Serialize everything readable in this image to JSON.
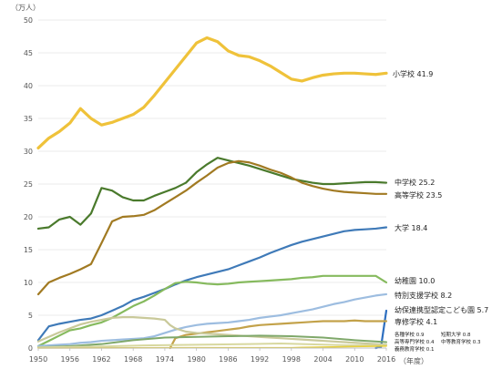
{
  "chart_data": {
    "type": "line",
    "title": "",
    "y_unit_label": "（万人）",
    "x_unit_label": "（年度）",
    "xlim": [
      1950,
      2016
    ],
    "ylim": [
      0,
      50
    ],
    "x_ticks": [
      1950,
      1956,
      1962,
      1968,
      1974,
      1980,
      1986,
      1992,
      1998,
      2004,
      2010,
      2016
    ],
    "y_ticks": [
      0,
      5,
      10,
      15,
      20,
      25,
      30,
      35,
      40,
      45,
      50
    ],
    "grid": "horizontal",
    "legend": "line-end labels on right",
    "series": [
      {
        "name": "小学校",
        "value_label": "41.9",
        "color": "#efc23a",
        "width": 3.2,
        "points": [
          [
            1950,
            30.5
          ],
          [
            1952,
            32
          ],
          [
            1954,
            33
          ],
          [
            1956,
            34.3
          ],
          [
            1958,
            36.5
          ],
          [
            1960,
            35
          ],
          [
            1962,
            34
          ],
          [
            1964,
            34.4
          ],
          [
            1966,
            35
          ],
          [
            1968,
            35.6
          ],
          [
            1970,
            36.7
          ],
          [
            1972,
            38.5
          ],
          [
            1974,
            40.5
          ],
          [
            1976,
            42.5
          ],
          [
            1978,
            44.5
          ],
          [
            1980,
            46.5
          ],
          [
            1982,
            47.3
          ],
          [
            1984,
            46.7
          ],
          [
            1986,
            45.3
          ],
          [
            1988,
            44.6
          ],
          [
            1990,
            44.4
          ],
          [
            1992,
            43.8
          ],
          [
            1994,
            43
          ],
          [
            1996,
            42
          ],
          [
            1998,
            41
          ],
          [
            2000,
            40.7
          ],
          [
            2002,
            41.2
          ],
          [
            2004,
            41.6
          ],
          [
            2006,
            41.8
          ],
          [
            2008,
            41.9
          ],
          [
            2010,
            41.9
          ],
          [
            2012,
            41.8
          ],
          [
            2014,
            41.7
          ],
          [
            2016,
            41.9
          ]
        ]
      },
      {
        "name": "中学校",
        "value_label": "25.2",
        "color": "#4a7a2c",
        "width": 2.2,
        "points": [
          [
            1950,
            18.2
          ],
          [
            1952,
            18.4
          ],
          [
            1954,
            19.6
          ],
          [
            1956,
            20
          ],
          [
            1958,
            18.8
          ],
          [
            1960,
            20.5
          ],
          [
            1962,
            24.4
          ],
          [
            1964,
            24
          ],
          [
            1966,
            23
          ],
          [
            1968,
            22.5
          ],
          [
            1970,
            22.5
          ],
          [
            1972,
            23.2
          ],
          [
            1974,
            23.8
          ],
          [
            1976,
            24.4
          ],
          [
            1978,
            25.2
          ],
          [
            1980,
            26.8
          ],
          [
            1982,
            28
          ],
          [
            1984,
            29
          ],
          [
            1986,
            28.6
          ],
          [
            1988,
            28.2
          ],
          [
            1990,
            27.8
          ],
          [
            1992,
            27.3
          ],
          [
            1994,
            26.8
          ],
          [
            1996,
            26.3
          ],
          [
            1998,
            25.8
          ],
          [
            2000,
            25.5
          ],
          [
            2002,
            25.2
          ],
          [
            2004,
            25
          ],
          [
            2006,
            25
          ],
          [
            2008,
            25.1
          ],
          [
            2010,
            25.2
          ],
          [
            2012,
            25.3
          ],
          [
            2014,
            25.3
          ],
          [
            2016,
            25.2
          ]
        ]
      },
      {
        "name": "高等学校",
        "value_label": "23.5",
        "color": "#a17a22",
        "width": 2.2,
        "points": [
          [
            1950,
            8.2
          ],
          [
            1952,
            10
          ],
          [
            1954,
            10.7
          ],
          [
            1956,
            11.3
          ],
          [
            1958,
            12
          ],
          [
            1960,
            12.8
          ],
          [
            1962,
            16
          ],
          [
            1964,
            19.3
          ],
          [
            1966,
            20
          ],
          [
            1968,
            20.1
          ],
          [
            1970,
            20.3
          ],
          [
            1972,
            21
          ],
          [
            1974,
            22
          ],
          [
            1976,
            23
          ],
          [
            1978,
            24
          ],
          [
            1980,
            25.2
          ],
          [
            1982,
            26.3
          ],
          [
            1984,
            27.5
          ],
          [
            1986,
            28.2
          ],
          [
            1988,
            28.5
          ],
          [
            1990,
            28.3
          ],
          [
            1992,
            27.8
          ],
          [
            1994,
            27.2
          ],
          [
            1996,
            26.7
          ],
          [
            1998,
            26
          ],
          [
            2000,
            25.2
          ],
          [
            2002,
            24.7
          ],
          [
            2004,
            24.3
          ],
          [
            2006,
            24
          ],
          [
            2008,
            23.8
          ],
          [
            2010,
            23.7
          ],
          [
            2012,
            23.6
          ],
          [
            2014,
            23.5
          ],
          [
            2016,
            23.5
          ]
        ]
      },
      {
        "name": "大学",
        "value_label": "18.4",
        "color": "#3f7ab8",
        "width": 2.2,
        "points": [
          [
            1950,
            1.2
          ],
          [
            1952,
            3.3
          ],
          [
            1954,
            3.7
          ],
          [
            1956,
            4
          ],
          [
            1958,
            4.3
          ],
          [
            1960,
            4.5
          ],
          [
            1962,
            5
          ],
          [
            1964,
            5.7
          ],
          [
            1966,
            6.4
          ],
          [
            1968,
            7.3
          ],
          [
            1970,
            7.8
          ],
          [
            1972,
            8.4
          ],
          [
            1974,
            9
          ],
          [
            1976,
            9.7
          ],
          [
            1978,
            10.3
          ],
          [
            1980,
            10.8
          ],
          [
            1982,
            11.2
          ],
          [
            1984,
            11.6
          ],
          [
            1986,
            12
          ],
          [
            1988,
            12.6
          ],
          [
            1990,
            13.2
          ],
          [
            1992,
            13.8
          ],
          [
            1994,
            14.5
          ],
          [
            1996,
            15.1
          ],
          [
            1998,
            15.7
          ],
          [
            2000,
            16.2
          ],
          [
            2002,
            16.6
          ],
          [
            2004,
            17
          ],
          [
            2006,
            17.4
          ],
          [
            2008,
            17.8
          ],
          [
            2010,
            18
          ],
          [
            2012,
            18.1
          ],
          [
            2014,
            18.2
          ],
          [
            2016,
            18.4
          ]
        ]
      },
      {
        "name": "幼稚園",
        "value_label": "10.0",
        "color": "#86ba5e",
        "width": 2.2,
        "points": [
          [
            1950,
            0.3
          ],
          [
            1952,
            1.1
          ],
          [
            1954,
            1.9
          ],
          [
            1956,
            2.7
          ],
          [
            1958,
            3
          ],
          [
            1960,
            3.5
          ],
          [
            1962,
            3.9
          ],
          [
            1964,
            4.6
          ],
          [
            1966,
            5.5
          ],
          [
            1968,
            6.4
          ],
          [
            1970,
            7.1
          ],
          [
            1972,
            8
          ],
          [
            1974,
            9
          ],
          [
            1976,
            9.9
          ],
          [
            1978,
            10.1
          ],
          [
            1980,
            10
          ],
          [
            1982,
            9.8
          ],
          [
            1984,
            9.7
          ],
          [
            1986,
            9.8
          ],
          [
            1988,
            10
          ],
          [
            1990,
            10.1
          ],
          [
            1992,
            10.2
          ],
          [
            1994,
            10.3
          ],
          [
            1996,
            10.4
          ],
          [
            1998,
            10.5
          ],
          [
            2000,
            10.7
          ],
          [
            2002,
            10.8
          ],
          [
            2004,
            11
          ],
          [
            2006,
            11
          ],
          [
            2008,
            11
          ],
          [
            2010,
            11
          ],
          [
            2012,
            11
          ],
          [
            2014,
            11
          ],
          [
            2016,
            10
          ]
        ]
      },
      {
        "name": "特別支援学校",
        "value_label": "8.2",
        "color": "#9dbde0",
        "width": 2.2,
        "points": [
          [
            1950,
            0.3
          ],
          [
            1952,
            0.4
          ],
          [
            1954,
            0.5
          ],
          [
            1956,
            0.6
          ],
          [
            1958,
            0.8
          ],
          [
            1960,
            0.9
          ],
          [
            1962,
            1.1
          ],
          [
            1964,
            1.2
          ],
          [
            1966,
            1.3
          ],
          [
            1968,
            1.4
          ],
          [
            1970,
            1.5
          ],
          [
            1972,
            1.8
          ],
          [
            1974,
            2.3
          ],
          [
            1976,
            2.8
          ],
          [
            1978,
            3.2
          ],
          [
            1980,
            3.5
          ],
          [
            1982,
            3.7
          ],
          [
            1984,
            3.8
          ],
          [
            1986,
            3.9
          ],
          [
            1988,
            4.1
          ],
          [
            1990,
            4.3
          ],
          [
            1992,
            4.6
          ],
          [
            1994,
            4.8
          ],
          [
            1996,
            5
          ],
          [
            1998,
            5.3
          ],
          [
            2000,
            5.6
          ],
          [
            2002,
            5.9
          ],
          [
            2004,
            6.3
          ],
          [
            2006,
            6.7
          ],
          [
            2008,
            7
          ],
          [
            2010,
            7.4
          ],
          [
            2012,
            7.7
          ],
          [
            2014,
            8
          ],
          [
            2016,
            8.2
          ]
        ]
      },
      {
        "name": "幼保連携型認定こども園",
        "value_label": "5.7",
        "color": "#2e6fc0",
        "width": 2.2,
        "points": [
          [
            2014,
            0
          ],
          [
            2015,
            0.2
          ],
          [
            2016,
            5.7
          ]
        ]
      },
      {
        "name": "専修学校",
        "value_label": "4.1",
        "color": "#c3a24a",
        "width": 2.2,
        "points": [
          [
            1975,
            0
          ],
          [
            1976,
            1.5
          ],
          [
            1978,
            2
          ],
          [
            1980,
            2.2
          ],
          [
            1982,
            2.4
          ],
          [
            1984,
            2.6
          ],
          [
            1986,
            2.8
          ],
          [
            1988,
            3
          ],
          [
            1990,
            3.3
          ],
          [
            1992,
            3.5
          ],
          [
            1994,
            3.6
          ],
          [
            1996,
            3.7
          ],
          [
            1998,
            3.8
          ],
          [
            2000,
            3.9
          ],
          [
            2002,
            4
          ],
          [
            2004,
            4.1
          ],
          [
            2006,
            4.1
          ],
          [
            2008,
            4.1
          ],
          [
            2010,
            4.2
          ],
          [
            2012,
            4.1
          ],
          [
            2014,
            4.1
          ],
          [
            2016,
            4.1
          ]
        ]
      },
      {
        "name": "",
        "value_label": "",
        "color": "#c9c99a",
        "width": 2.2,
        "points": [
          [
            1950,
            1
          ],
          [
            1952,
            1.7
          ],
          [
            1954,
            2.4
          ],
          [
            1956,
            3
          ],
          [
            1958,
            3.6
          ],
          [
            1960,
            4
          ],
          [
            1962,
            4.3
          ],
          [
            1964,
            4.6
          ],
          [
            1966,
            4.7
          ],
          [
            1968,
            4.7
          ],
          [
            1970,
            4.6
          ],
          [
            1972,
            4.5
          ],
          [
            1974,
            4.3
          ],
          [
            1975,
            3.5
          ],
          [
            1976,
            3
          ],
          [
            1978,
            2.5
          ],
          [
            1980,
            2.3
          ],
          [
            1982,
            2.2
          ],
          [
            1984,
            2.1
          ],
          [
            1986,
            2
          ],
          [
            1988,
            1.9
          ],
          [
            1990,
            1.8
          ],
          [
            1992,
            1.7
          ],
          [
            1994,
            1.6
          ],
          [
            1996,
            1.5
          ],
          [
            1998,
            1.4
          ],
          [
            2000,
            1.3
          ],
          [
            2002,
            1.2
          ],
          [
            2004,
            1.1
          ],
          [
            2006,
            1
          ],
          [
            2008,
            0.9
          ],
          [
            2010,
            0.8
          ],
          [
            2012,
            0.7
          ],
          [
            2014,
            0.6
          ],
          [
            2016,
            0.5
          ]
        ]
      },
      {
        "name": "",
        "value_label": "",
        "color": "#7fa86a",
        "width": 2,
        "points": [
          [
            1950,
            0.1
          ],
          [
            1956,
            0.3
          ],
          [
            1962,
            0.6
          ],
          [
            1968,
            1.2
          ],
          [
            1974,
            1.6
          ],
          [
            1980,
            1.7
          ],
          [
            1986,
            1.8
          ],
          [
            1992,
            1.9
          ],
          [
            1998,
            1.8
          ],
          [
            2004,
            1.6
          ],
          [
            2010,
            1.2
          ],
          [
            2016,
            0.9
          ]
        ]
      },
      {
        "name": "",
        "value_label": "",
        "color": "#d8d8a0",
        "width": 2,
        "points": [
          [
            1950,
            0.1
          ],
          [
            1960,
            0.2
          ],
          [
            1970,
            0.4
          ],
          [
            1980,
            0.5
          ],
          [
            1990,
            0.6
          ],
          [
            1996,
            0.7
          ],
          [
            2000,
            0.6
          ],
          [
            2010,
            0.4
          ],
          [
            2016,
            0.4
          ]
        ]
      },
      {
        "name": "",
        "value_label": "",
        "color": "#e6cf3c",
        "width": 1.6,
        "points": [
          [
            1950,
            0
          ],
          [
            1980,
            0.05
          ],
          [
            1998,
            0.05
          ],
          [
            2000,
            0.1
          ],
          [
            2016,
            0.3
          ]
        ]
      }
    ],
    "small_labels": [
      {
        "text": "各種学校 0.9"
      },
      {
        "text": "短期大学 0.8"
      },
      {
        "text": "高等専門学校 0.4"
      },
      {
        "text": "中等教育学校 0.3"
      },
      {
        "text": "義務教育学校 0.1"
      }
    ]
  }
}
